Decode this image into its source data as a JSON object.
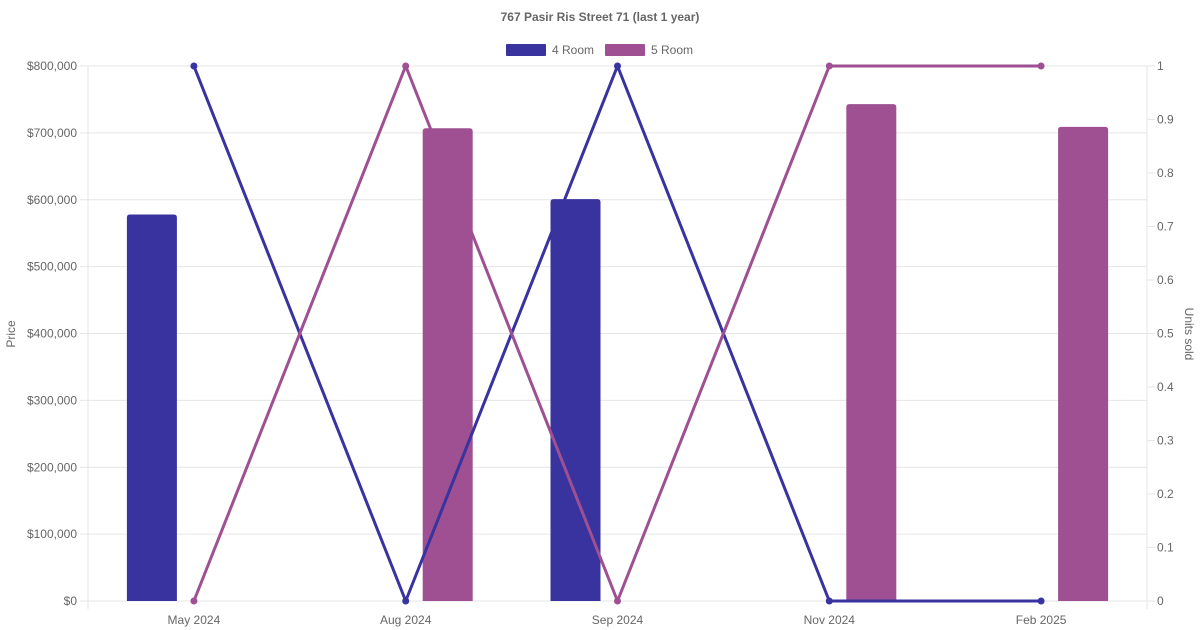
{
  "chart_data": {
    "type": "bar",
    "title": "767 Pasir Ris Street 71 (last 1 year)",
    "categories": [
      "May 2024",
      "Aug 2024",
      "Sep 2024",
      "Nov 2024",
      "Feb 2025"
    ],
    "ylabel": "Price",
    "y2label": "Units sold",
    "ylim": [
      0,
      800000
    ],
    "y2lim": [
      0,
      1
    ],
    "y_ticks": [
      "$0",
      "$100,000",
      "$200,000",
      "$300,000",
      "$400,000",
      "$500,000",
      "$600,000",
      "$700,000",
      "$800,000"
    ],
    "y2_ticks": [
      "0",
      "0.1",
      "0.2",
      "0.3",
      "0.4",
      "0.5",
      "0.6",
      "0.7",
      "0.8",
      "0.9",
      "1"
    ],
    "legend_position": "top-center",
    "grid": true,
    "series": [
      {
        "name": "4 Room",
        "color": "#38339f",
        "price": [
          578000,
          null,
          601000,
          null,
          null
        ],
        "units": [
          1,
          0,
          1,
          0,
          0
        ]
      },
      {
        "name": "5 Room",
        "color": "#9e5093",
        "price": [
          null,
          707000,
          null,
          743000,
          709000
        ],
        "units": [
          0,
          1,
          0,
          1,
          1
        ]
      }
    ]
  }
}
